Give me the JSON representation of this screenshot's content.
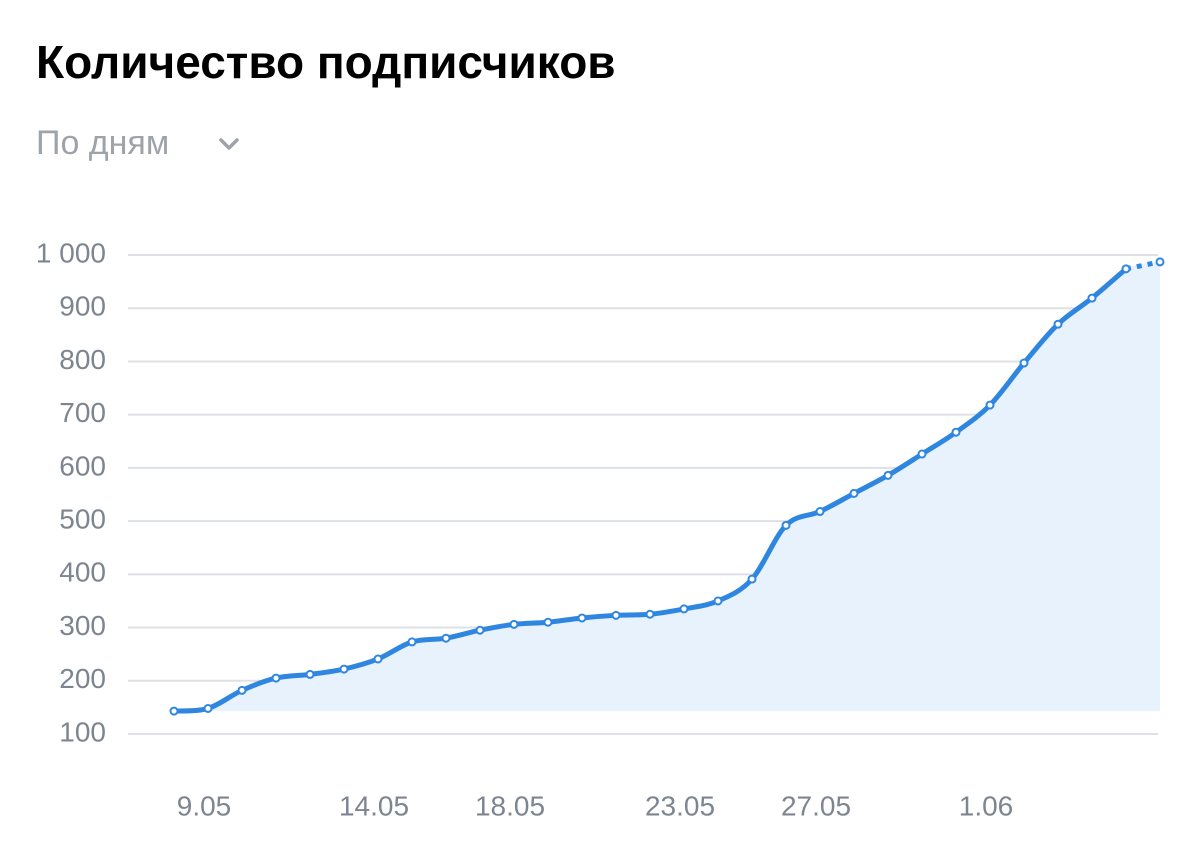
{
  "chart_data": {
    "type": "line",
    "title": "Количество подписчиков",
    "subtitle": "По дням",
    "categories": [
      null,
      "9.05",
      null,
      null,
      null,
      null,
      "14.05",
      null,
      null,
      null,
      "18.05",
      null,
      null,
      null,
      null,
      "23.05",
      null,
      null,
      null,
      "27.05",
      null,
      null,
      null,
      null,
      "1.06",
      null,
      null,
      null,
      null,
      null
    ],
    "series": [
      {
        "color": "#2f86e0",
        "values": [
          143,
          148,
          182,
          205,
          212,
          222,
          241,
          273,
          280,
          295,
          306,
          310,
          318,
          323,
          325,
          335,
          350,
          391,
          492,
          518,
          552,
          586,
          626,
          667,
          718,
          797,
          870,
          919,
          974,
          987
        ]
      }
    ],
    "ylim": [
      100,
      1000
    ],
    "yticks": [
      100,
      200,
      300,
      400,
      500,
      600,
      700,
      800,
      900,
      {
        "value": 1000,
        "label": "1 000"
      }
    ],
    "grid": true,
    "area_fill": "#e7f2fc",
    "dashed_last_segment": true
  }
}
